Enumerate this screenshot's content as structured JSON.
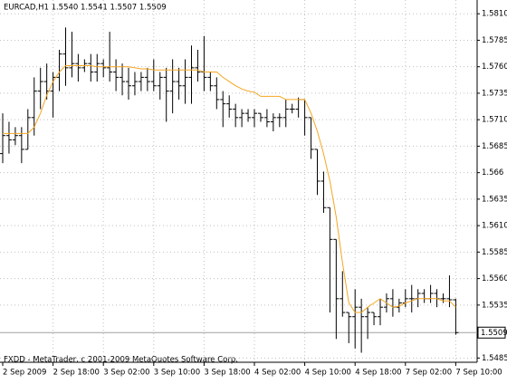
{
  "chart_data": {
    "type": "ohlc",
    "header": "EURCAD,H1  1.5540 1.5541 1.5507 1.5509",
    "footer": "FXDD - MetaTrader, c 2001-2009 MetaQuotes Software Corp.",
    "categories": [
      "2 Sep 2009",
      null,
      null,
      null,
      null,
      null,
      null,
      null,
      "2 Sep 18:00",
      null,
      null,
      null,
      null,
      null,
      null,
      null,
      "3 Sep 02:00",
      null,
      null,
      null,
      null,
      null,
      null,
      null,
      "3 Sep 10:00",
      null,
      null,
      null,
      null,
      null,
      null,
      null,
      "3 Sep 18:00",
      null,
      null,
      null,
      null,
      null,
      null,
      null,
      "4 Sep 02:00",
      null,
      null,
      null,
      null,
      null,
      null,
      null,
      "4 Sep 10:00",
      null,
      null,
      null,
      null,
      null,
      null,
      null,
      "4 Sep 18:00",
      null,
      null,
      null,
      null,
      null,
      null,
      null,
      "7 Sep 02:00",
      null,
      null,
      null,
      null,
      null,
      null,
      null,
      "7 Sep 10:00"
    ],
    "open": [
      1.5678,
      1.5695,
      1.5691,
      1.5695,
      1.5682,
      1.5712,
      1.5737,
      1.5746,
      1.5737,
      1.575,
      1.5772,
      1.5759,
      1.5763,
      1.5759,
      1.5763,
      1.5755,
      1.5763,
      1.5759,
      1.5755,
      1.575,
      1.5746,
      1.5742,
      1.5746,
      1.575,
      1.5746,
      1.5742,
      1.575,
      1.5737,
      1.5746,
      1.5742,
      1.575,
      1.5759,
      1.5755,
      1.575,
      1.5742,
      1.5729,
      1.5725,
      1.572,
      1.5712,
      1.5716,
      1.5712,
      1.5716,
      1.5712,
      1.5708,
      1.5712,
      1.5712,
      1.572,
      1.572,
      1.5729,
      1.5712,
      1.5682,
      1.5652,
      1.5627,
      1.5597,
      1.5541,
      1.5528,
      1.5524,
      1.5533,
      1.5524,
      1.5528,
      1.5524,
      1.5533,
      1.5541,
      1.5533,
      1.5537,
      1.5541,
      1.5541,
      1.5546,
      1.5541,
      1.5546,
      1.5541,
      1.5541,
      1.554
    ],
    "high": [
      1.5716,
      1.5708,
      1.5703,
      1.5703,
      1.572,
      1.575,
      1.5759,
      1.5763,
      1.5755,
      1.5776,
      1.5797,
      1.5793,
      1.5772,
      1.5767,
      1.5772,
      1.5772,
      1.5767,
      1.5793,
      1.5767,
      1.5763,
      1.5759,
      1.5755,
      1.5755,
      1.5759,
      1.5767,
      1.5755,
      1.5759,
      1.5767,
      1.5759,
      1.5767,
      1.578,
      1.5776,
      1.5789,
      1.5755,
      1.575,
      1.5737,
      1.5733,
      1.5725,
      1.572,
      1.572,
      1.572,
      1.5716,
      1.572,
      1.5716,
      1.5716,
      1.5729,
      1.5725,
      1.5731,
      1.5729,
      1.5712,
      1.5682,
      1.5661,
      1.5627,
      1.5597,
      1.5567,
      1.5528,
      1.555,
      1.5541,
      1.5533,
      1.5528,
      1.5541,
      1.5546,
      1.555,
      1.5541,
      1.555,
      1.5554,
      1.555,
      1.555,
      1.5554,
      1.555,
      1.5546,
      1.5563,
      1.5541
    ],
    "low": [
      1.5669,
      1.5678,
      1.5686,
      1.5669,
      1.5682,
      1.5695,
      1.572,
      1.5729,
      1.5712,
      1.5737,
      1.5742,
      1.575,
      1.5746,
      1.5755,
      1.5746,
      1.5746,
      1.575,
      1.5746,
      1.5737,
      1.5733,
      1.5729,
      1.5733,
      1.5737,
      1.5737,
      1.5737,
      1.5729,
      1.5708,
      1.5716,
      1.5729,
      1.5725,
      1.5725,
      1.5746,
      1.5737,
      1.5737,
      1.572,
      1.5703,
      1.5712,
      1.5703,
      1.5703,
      1.5708,
      1.5703,
      1.5708,
      1.5703,
      1.5699,
      1.5703,
      1.5703,
      1.5716,
      1.5712,
      1.5695,
      1.5673,
      1.5639,
      1.5622,
      1.5528,
      1.5503,
      1.5524,
      1.5499,
      1.5494,
      1.549,
      1.5503,
      1.5516,
      1.5516,
      1.5528,
      1.5524,
      1.5528,
      1.5533,
      1.5528,
      1.5533,
      1.5537,
      1.5537,
      1.5533,
      1.5537,
      1.5533,
      1.5507
    ],
    "close": [
      1.5695,
      1.5691,
      1.5695,
      1.5682,
      1.5712,
      1.5737,
      1.5746,
      1.5737,
      1.575,
      1.5772,
      1.5759,
      1.5763,
      1.5759,
      1.5763,
      1.5755,
      1.5763,
      1.5759,
      1.5755,
      1.575,
      1.5746,
      1.5742,
      1.5746,
      1.575,
      1.5746,
      1.5742,
      1.575,
      1.5737,
      1.5746,
      1.5742,
      1.575,
      1.5759,
      1.5755,
      1.575,
      1.5742,
      1.5729,
      1.5725,
      1.572,
      1.5712,
      1.5716,
      1.5712,
      1.5716,
      1.5712,
      1.5708,
      1.5712,
      1.5712,
      1.572,
      1.572,
      1.5729,
      1.5712,
      1.5682,
      1.5652,
      1.5627,
      1.5597,
      1.5541,
      1.5528,
      1.5524,
      1.5533,
      1.5524,
      1.5528,
      1.5524,
      1.5533,
      1.5541,
      1.5533,
      1.5537,
      1.5541,
      1.5541,
      1.5546,
      1.5541,
      1.5546,
      1.5541,
      1.5541,
      1.554,
      1.5509
    ],
    "bar_color": "#000000",
    "ma": {
      "type": "line",
      "color": "#f5a623",
      "values": [
        1.5697,
        1.5697,
        1.5697,
        1.5697,
        1.5697,
        1.5703,
        1.5716,
        1.5733,
        1.5746,
        1.5755,
        1.5761,
        1.5761,
        1.5761,
        1.5761,
        1.5761,
        1.576,
        1.576,
        1.576,
        1.576,
        1.576,
        1.576,
        1.5759,
        1.5758,
        1.5758,
        1.5757,
        1.5757,
        1.5757,
        1.5757,
        1.5757,
        1.5757,
        1.5757,
        1.5757,
        1.5755,
        1.5755,
        1.5755,
        1.575,
        1.5746,
        1.5742,
        1.5739,
        1.5737,
        1.5736,
        1.5732,
        1.5732,
        1.5732,
        1.5732,
        1.5729,
        1.5729,
        1.5729,
        1.5729,
        1.5716,
        1.5699,
        1.5678,
        1.5652,
        1.5618,
        1.5575,
        1.5537,
        1.5528,
        1.5528,
        1.5533,
        1.5537,
        1.5541,
        1.5537,
        1.5533,
        1.5534,
        1.5537,
        1.5539,
        1.5541,
        1.5541,
        1.5541,
        1.5541,
        1.5539,
        1.5539,
        1.5533
      ]
    },
    "ylim": [
      1.5481,
      1.5823
    ],
    "yticks": [
      {
        "value": 1.581,
        "label": "1.5810"
      },
      {
        "value": 1.5785,
        "label": "1.5785"
      },
      {
        "value": 1.576,
        "label": "1.5760"
      },
      {
        "value": 1.5735,
        "label": "1.5735"
      },
      {
        "value": 1.571,
        "label": "1.5710"
      },
      {
        "value": 1.5685,
        "label": "1.5685"
      },
      1.566,
      {
        "value": 1.5635,
        "label": "1.5635"
      },
      {
        "value": 1.561,
        "label": "1.5610"
      },
      {
        "value": 1.5585,
        "label": "1.5585"
      },
      {
        "value": 1.556,
        "label": "1.5560"
      },
      {
        "value": 1.5535,
        "label": "1.5535"
      },
      {
        "value": 1.5485,
        "label": "1.5485"
      }
    ],
    "grid": true,
    "grid_color": "#c0c0c0"
  }
}
